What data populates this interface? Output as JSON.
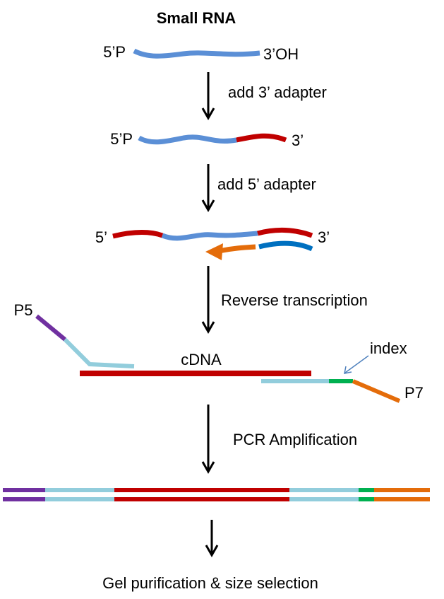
{
  "title": "Small RNA",
  "labels": {
    "rna_5": "5’P",
    "rna_3": "3’OH",
    "lig_5": "5’P",
    "lig_3": "3’",
    "full_5": "5’",
    "full_3": "3’",
    "p5": "P5",
    "cdna": "cDNA",
    "index": "index",
    "p7": "P7"
  },
  "steps": [
    "add 3’ adapter",
    "add 5’ adapter",
    "Reverse transcription",
    "PCR Amplification",
    "Gel purification & size selection"
  ]
}
